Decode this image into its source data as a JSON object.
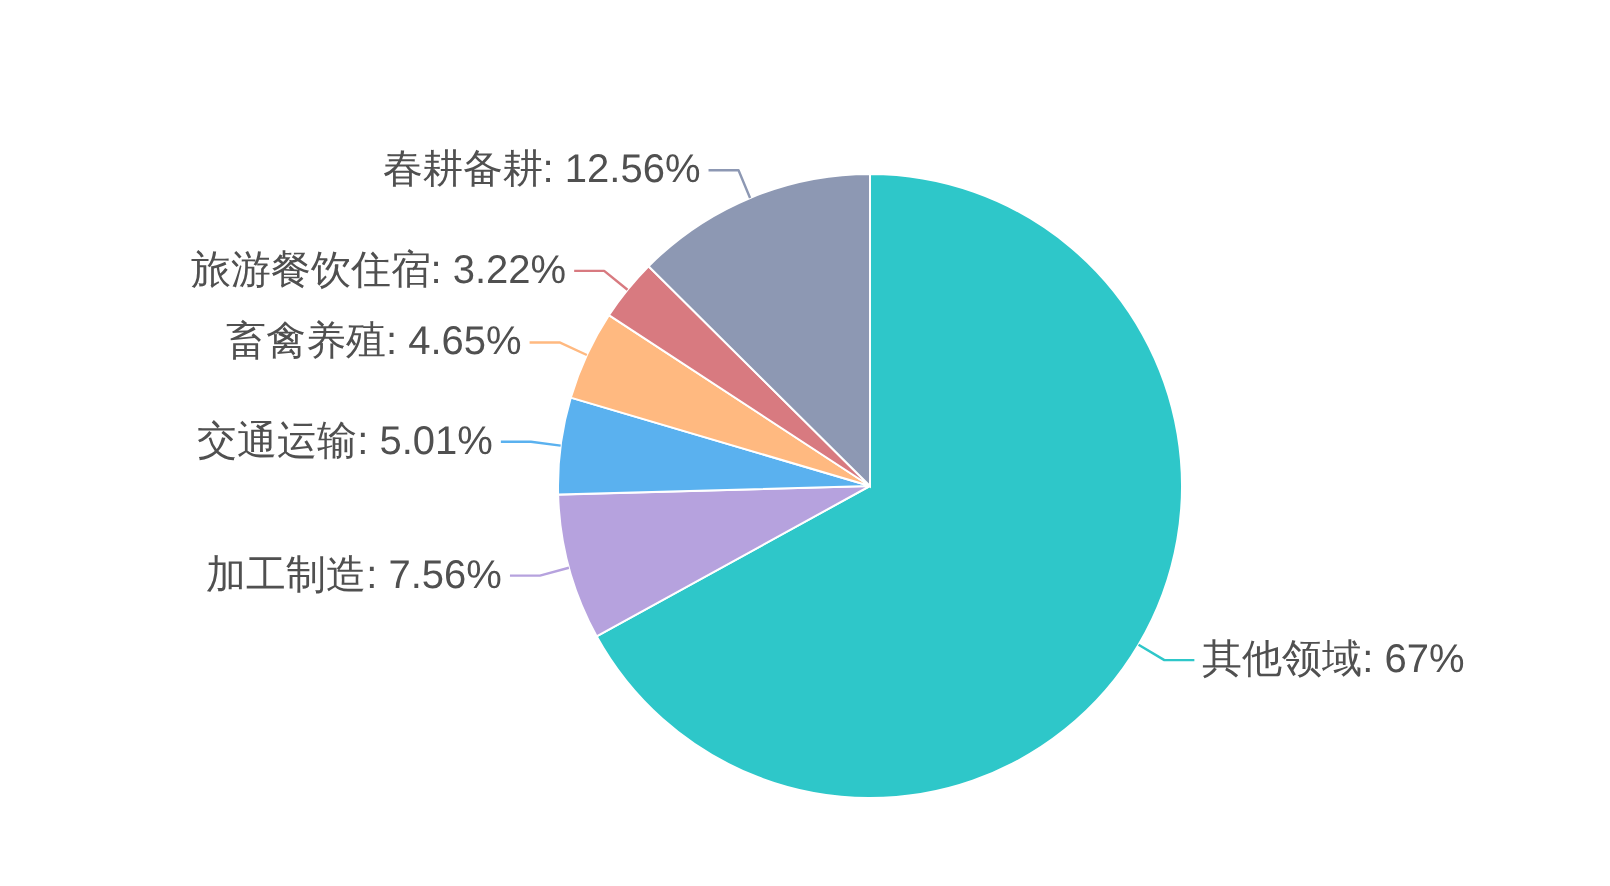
{
  "chart_data": {
    "type": "pie",
    "categories": [
      "其他领域",
      "加工制造",
      "交通运输",
      "畜禽养殖",
      "旅游餐饮住宿",
      "春耕备耕"
    ],
    "values": [
      67,
      7.56,
      5.01,
      4.65,
      3.22,
      12.56
    ],
    "colors": [
      "#2ec7c9",
      "#b6a2de",
      "#5ab1ef",
      "#ffb980",
      "#d87a80",
      "#8d98b3"
    ],
    "value_labels": [
      "67%",
      "7.56%",
      "5.01%",
      "4.65%",
      "3.22%",
      "12.56%"
    ]
  }
}
